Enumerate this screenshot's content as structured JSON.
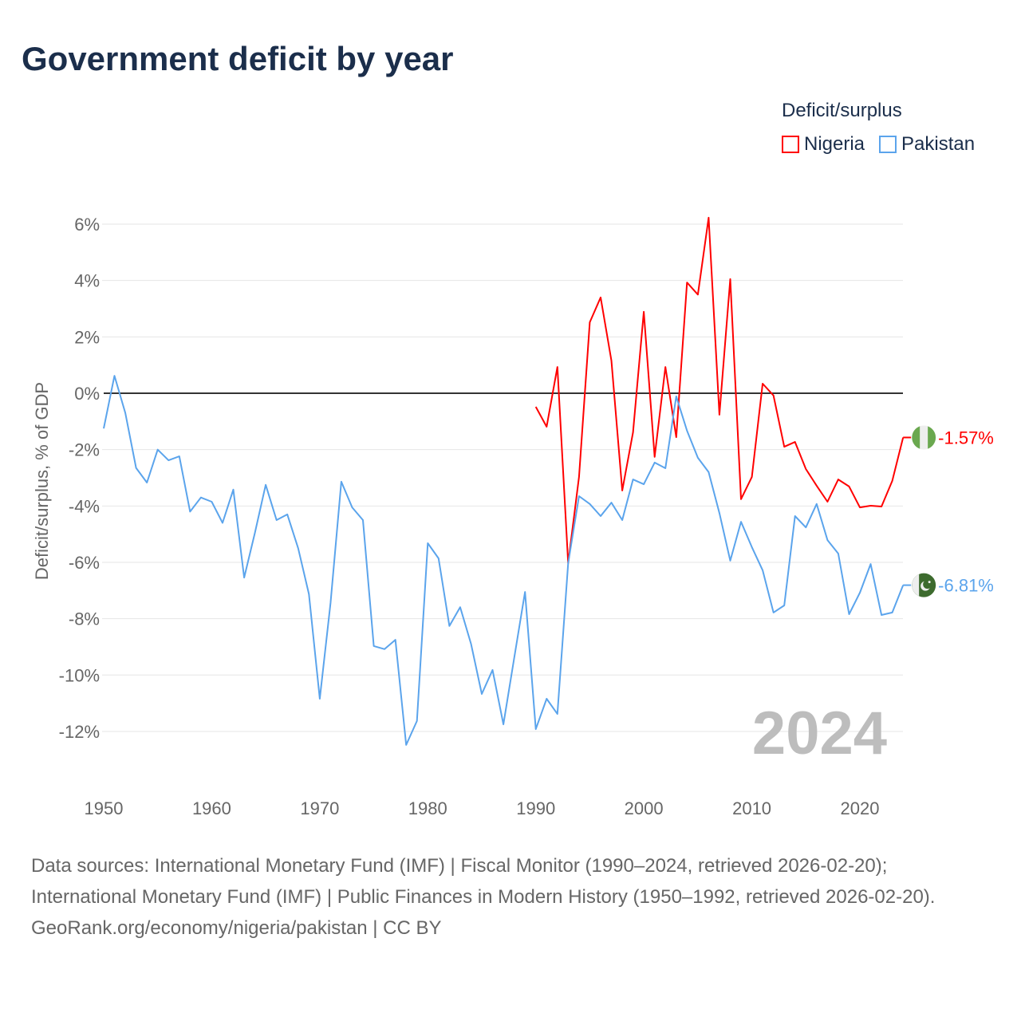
{
  "chart_data": {
    "type": "line",
    "title": "Government deficit by year",
    "ylabel": "Deficit/surplus, % of GDP",
    "xlabel": "",
    "xlim": [
      1950,
      2024
    ],
    "ylim": [
      -13,
      6.5
    ],
    "xticks": [
      1950,
      1960,
      1970,
      1980,
      1990,
      2000,
      2010,
      2020
    ],
    "yticks": [
      6,
      4,
      2,
      0,
      -2,
      -4,
      -6,
      -8,
      -10,
      -12
    ],
    "ytick_labels": [
      "6%",
      "4%",
      "2%",
      "0%",
      "-2%",
      "-4%",
      "-6%",
      "-8%",
      "-10%",
      "-12%"
    ],
    "grid": true,
    "legend_title": "Deficit/surplus",
    "legend_placement": "top-right",
    "year_watermark": "2024",
    "series": [
      {
        "name": "Nigeria",
        "color": "#ff0000",
        "start_year": 1990,
        "end_label": "-1.57%",
        "values": [
          -0.48,
          -1.19,
          0.93,
          -6.03,
          -2.97,
          2.52,
          3.4,
          1.16,
          -3.45,
          -1.39,
          2.89,
          -2.26,
          0.93,
          -1.56,
          3.93,
          3.5,
          6.23,
          -0.76,
          4.05,
          -3.76,
          -2.97,
          0.34,
          -0.08,
          -1.9,
          -1.73,
          -2.69,
          -3.28,
          -3.85,
          -3.06,
          -3.31,
          -4.05,
          -3.99,
          -4.02,
          -3.11,
          -1.57
        ]
      },
      {
        "name": "Pakistan",
        "color": "#5ba4ec",
        "start_year": 1950,
        "end_label": "-6.81%",
        "values": [
          -1.25,
          0.62,
          -0.7,
          -2.65,
          -3.17,
          -2.0,
          -2.38,
          -2.24,
          -4.2,
          -3.7,
          -3.85,
          -4.6,
          -3.42,
          -6.54,
          -4.95,
          -3.25,
          -4.5,
          -4.3,
          -5.5,
          -7.13,
          -10.84,
          -7.44,
          -3.14,
          -4.05,
          -4.5,
          -8.97,
          -9.08,
          -8.75,
          -12.48,
          -11.63,
          -5.32,
          -5.86,
          -8.26,
          -7.59,
          -8.89,
          -10.67,
          -9.82,
          -11.75,
          -9.4,
          -7.05,
          -11.92,
          -10.84,
          -11.38,
          -6.03,
          -3.65,
          -3.93,
          -4.36,
          -3.88,
          -4.5,
          -3.06,
          -3.23,
          -2.46,
          -2.66,
          -0.11,
          -1.33,
          -2.29,
          -2.8,
          -4.25,
          -5.94,
          -4.56,
          -5.46,
          -6.28,
          -7.78,
          -7.53,
          -4.36,
          -4.76,
          -3.93,
          -5.21,
          -5.69,
          -7.84,
          -7.08,
          -6.06,
          -7.87,
          -7.78,
          -6.81
        ]
      }
    ]
  },
  "footer": {
    "sources": "Data sources: International Monetary Fund (IMF) | Fiscal Monitor (1990–2024, retrieved 2026-02-20); International Monetary Fund (IMF) | Public Finances in Modern History (1950–1992, retrieved 2026-02-20).",
    "credit": "GeoRank.org/economy/nigeria/pakistan | CC BY"
  }
}
